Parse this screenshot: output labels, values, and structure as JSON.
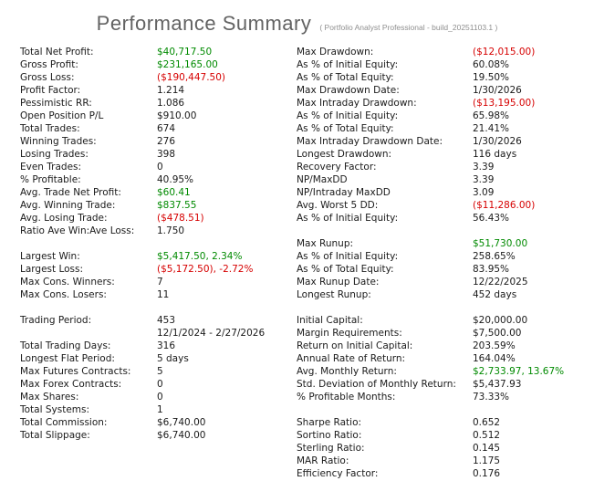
{
  "header": {
    "title": "Performance Summary",
    "subtitle": "( Portfolio Analyst Professional - build_20251103.1 )"
  },
  "colors": {
    "positive": "#008a00",
    "negative": "#d60000",
    "text": "#1a1a1a",
    "title": "#636363",
    "subtitle": "#8f8f8f",
    "background": "#ffffff"
  },
  "rows": [
    {
      "left": {
        "label": "Total Net Profit:",
        "value": "$40,717.50",
        "color": "positive"
      },
      "right": {
        "label": "Max Drawdown:",
        "value": "($12,015.00)",
        "color": "negative"
      }
    },
    {
      "left": {
        "label": "Gross Profit:",
        "value": "$231,165.00",
        "color": "positive"
      },
      "right": {
        "label": "As % of Initial Equity:",
        "value": "60.08%"
      }
    },
    {
      "left": {
        "label": "Gross Loss:",
        "value": "($190,447.50)",
        "color": "negative"
      },
      "right": {
        "label": "As % of Total Equity:",
        "value": "19.50%"
      }
    },
    {
      "left": {
        "label": "Profit Factor:",
        "value": "1.214"
      },
      "right": {
        "label": "Max Drawdown Date:",
        "value": "1/30/2026"
      }
    },
    {
      "left": {
        "label": "Pessimistic RR:",
        "value": "1.086"
      },
      "right": {
        "label": "Max Intraday Drawdown:",
        "value": "($13,195.00)",
        "color": "negative"
      }
    },
    {
      "left": {
        "label": "Open Position P/L",
        "value": "$910.00"
      },
      "right": {
        "label": "As % of Initial Equity:",
        "value": "65.98%"
      }
    },
    {
      "left": {
        "label": "Total Trades:",
        "value": "674"
      },
      "right": {
        "label": "As % of Total Equity:",
        "value": "21.41%"
      }
    },
    {
      "left": {
        "label": "Winning Trades:",
        "value": "276"
      },
      "right": {
        "label": "Max Intraday Drawdown Date:",
        "value": "1/30/2026"
      }
    },
    {
      "left": {
        "label": "Losing Trades:",
        "value": "398"
      },
      "right": {
        "label": "Longest Drawdown:",
        "value": "116 days"
      }
    },
    {
      "left": {
        "label": "Even Trades:",
        "value": "0"
      },
      "right": {
        "label": "Recovery Factor:",
        "value": "3.39"
      }
    },
    {
      "left": {
        "label": "% Profitable:",
        "value": "40.95%"
      },
      "right": {
        "label": "NP/MaxDD",
        "value": "3.39"
      }
    },
    {
      "left": {
        "label": "Avg. Trade Net Profit:",
        "value": "$60.41",
        "color": "positive"
      },
      "right": {
        "label": "NP/Intraday MaxDD",
        "value": "3.09"
      }
    },
    {
      "left": {
        "label": "Avg. Winning Trade:",
        "value": "$837.55",
        "color": "positive"
      },
      "right": {
        "label": "Avg. Worst 5 DD:",
        "value": "($11,286.00)",
        "color": "negative"
      }
    },
    {
      "left": {
        "label": "Avg. Losing Trade:",
        "value": "($478.51)",
        "color": "negative"
      },
      "right": {
        "label": "As % of Initial Equity:",
        "value": "56.43%"
      }
    },
    {
      "left": {
        "label": "Ratio Ave Win:Ave Loss:",
        "value": "1.750"
      },
      "right": null
    },
    {
      "left": null,
      "right": {
        "label": "Max Runup:",
        "value": "$51,730.00",
        "color": "positive"
      }
    },
    {
      "left": {
        "label": "Largest Win:",
        "value": "$5,417.50, 2.34%",
        "color": "positive"
      },
      "right": {
        "label": "As % of Initial Equity:",
        "value": "258.65%"
      }
    },
    {
      "left": {
        "label": "Largest Loss:",
        "value": "($5,172.50), -2.72%",
        "color": "negative"
      },
      "right": {
        "label": "As % of Total Equity:",
        "value": "83.95%"
      }
    },
    {
      "left": {
        "label": "Max Cons. Winners:",
        "value": "7"
      },
      "right": {
        "label": "Max Runup Date:",
        "value": "12/22/2025"
      }
    },
    {
      "left": {
        "label": "Max Cons. Losers:",
        "value": "11"
      },
      "right": {
        "label": "Longest Runup:",
        "value": "452 days"
      }
    },
    {
      "left": null,
      "right": null
    },
    {
      "left": {
        "label": "Trading Period:",
        "value": "453"
      },
      "right": {
        "label": "Initial Capital:",
        "value": "$20,000.00"
      }
    },
    {
      "left": {
        "label": "",
        "value": "12/1/2024 - 2/27/2026"
      },
      "right": {
        "label": "Margin Requirements:",
        "value": "$7,500.00"
      }
    },
    {
      "left": {
        "label": "Total Trading Days:",
        "value": "316"
      },
      "right": {
        "label": "Return on Initial Capital:",
        "value": "203.59%"
      }
    },
    {
      "left": {
        "label": "Longest Flat Period:",
        "value": "5 days"
      },
      "right": {
        "label": "Annual Rate of Return:",
        "value": "164.04%"
      }
    },
    {
      "left": {
        "label": "Max Futures Contracts:",
        "value": "5"
      },
      "right": {
        "label": "Avg. Monthly Return:",
        "value": "$2,733.97, 13.67%",
        "color": "positive"
      }
    },
    {
      "left": {
        "label": "Max Forex Contracts:",
        "value": "0"
      },
      "right": {
        "label": "Std. Deviation of Monthly Return:",
        "value": "$5,437.93"
      }
    },
    {
      "left": {
        "label": "Max Shares:",
        "value": "0"
      },
      "right": {
        "label": "% Profitable Months:",
        "value": "73.33%"
      }
    },
    {
      "left": {
        "label": "Total Systems:",
        "value": "1"
      },
      "right": null
    },
    {
      "left": {
        "label": "Total Commission:",
        "value": "$6,740.00"
      },
      "right": {
        "label": "Sharpe Ratio:",
        "value": "0.652"
      }
    },
    {
      "left": {
        "label": "Total Slippage:",
        "value": "$6,740.00"
      },
      "right": {
        "label": "Sortino Ratio:",
        "value": "0.512"
      }
    },
    {
      "left": null,
      "right": {
        "label": "Sterling Ratio:",
        "value": "0.145"
      }
    },
    {
      "left": null,
      "right": {
        "label": "MAR Ratio:",
        "value": "1.175"
      }
    },
    {
      "left": null,
      "right": {
        "label": "Efficiency Factor:",
        "value": "0.176"
      }
    }
  ]
}
